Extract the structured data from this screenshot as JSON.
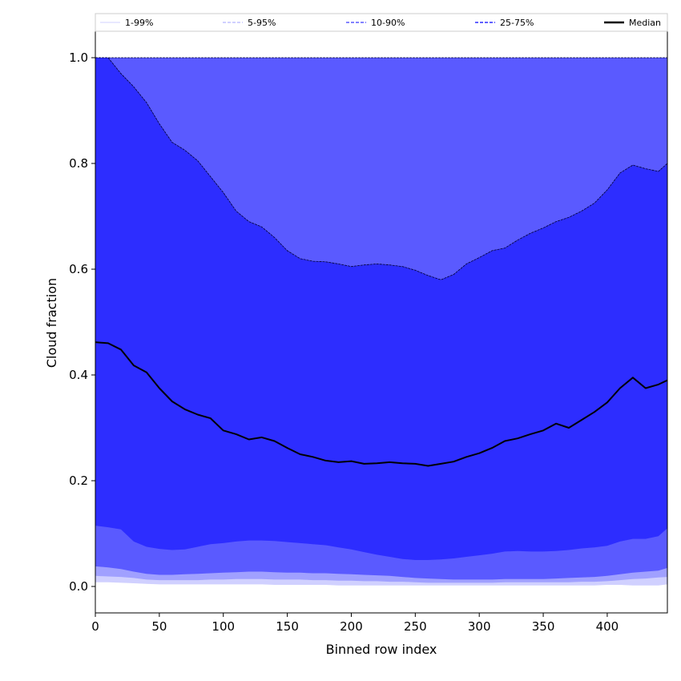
{
  "chart_data": {
    "type": "area",
    "xlabel": "Binned row index",
    "ylabel": "Cloud fraction",
    "xlim": [
      0,
      447
    ],
    "ylim": [
      -0.05,
      1.05
    ],
    "xticks": [
      0,
      50,
      100,
      150,
      200,
      250,
      300,
      350,
      400
    ],
    "yticks": [
      0.0,
      0.2,
      0.4,
      0.6,
      0.8,
      1.0
    ],
    "grid": false,
    "legend_position": "top",
    "colors": {
      "band_1_99": "#d0d0ff",
      "band_5_95": "#a0a0ff",
      "band_10_90": "#5a5aff",
      "band_25_75": "#2d2dff",
      "median": "#000000"
    },
    "x": [
      0,
      10,
      20,
      30,
      40,
      50,
      60,
      70,
      80,
      90,
      100,
      110,
      120,
      130,
      140,
      150,
      160,
      170,
      180,
      190,
      200,
      210,
      220,
      230,
      240,
      250,
      260,
      270,
      280,
      290,
      300,
      310,
      320,
      330,
      340,
      350,
      360,
      370,
      380,
      390,
      400,
      410,
      420,
      430,
      440,
      447
    ],
    "series": [
      {
        "name": "1-99%",
        "lower": [
          0.008,
          0.008,
          0.007,
          0.006,
          0.005,
          0.004,
          0.004,
          0.004,
          0.004,
          0.004,
          0.004,
          0.004,
          0.004,
          0.004,
          0.003,
          0.003,
          0.003,
          0.003,
          0.003,
          0.002,
          0.002,
          0.002,
          0.002,
          0.002,
          0.002,
          0.002,
          0.002,
          0.002,
          0.002,
          0.002,
          0.002,
          0.002,
          0.002,
          0.002,
          0.002,
          0.002,
          0.002,
          0.002,
          0.002,
          0.002,
          0.003,
          0.003,
          0.002,
          0.002,
          0.002,
          0.004
        ],
        "upper": [
          1,
          1,
          1,
          1,
          1,
          1,
          1,
          1,
          1,
          1,
          1,
          1,
          1,
          1,
          1,
          1,
          1,
          1,
          1,
          1,
          1,
          1,
          1,
          1,
          1,
          1,
          1,
          1,
          1,
          1,
          1,
          1,
          1,
          1,
          1,
          1,
          1,
          1,
          1,
          1,
          1,
          1,
          1,
          1,
          1,
          1
        ]
      },
      {
        "name": "5-95%",
        "lower": [
          0.02,
          0.019,
          0.018,
          0.016,
          0.013,
          0.012,
          0.012,
          0.012,
          0.012,
          0.013,
          0.013,
          0.014,
          0.014,
          0.014,
          0.013,
          0.013,
          0.013,
          0.012,
          0.012,
          0.011,
          0.011,
          0.01,
          0.01,
          0.009,
          0.009,
          0.008,
          0.007,
          0.007,
          0.007,
          0.007,
          0.007,
          0.007,
          0.008,
          0.008,
          0.008,
          0.008,
          0.008,
          0.008,
          0.009,
          0.009,
          0.01,
          0.012,
          0.014,
          0.015,
          0.017,
          0.018
        ],
        "upper": [
          1,
          1,
          1,
          1,
          1,
          1,
          1,
          1,
          1,
          1,
          1,
          1,
          1,
          1,
          1,
          1,
          1,
          1,
          1,
          1,
          1,
          1,
          1,
          1,
          1,
          0.99,
          0.985,
          0.975,
          0.99,
          0.995,
          0.99,
          0.995,
          0.99,
          0.995,
          1,
          0.99,
          0.995,
          1,
          1,
          1,
          1,
          1,
          1,
          1,
          1,
          1
        ]
      },
      {
        "name": "10-90%",
        "lower": [
          0.038,
          0.036,
          0.033,
          0.028,
          0.024,
          0.022,
          0.022,
          0.023,
          0.024,
          0.025,
          0.026,
          0.027,
          0.028,
          0.028,
          0.027,
          0.026,
          0.026,
          0.025,
          0.025,
          0.024,
          0.023,
          0.022,
          0.021,
          0.02,
          0.018,
          0.016,
          0.015,
          0.014,
          0.013,
          0.013,
          0.013,
          0.013,
          0.014,
          0.014,
          0.014,
          0.014,
          0.015,
          0.016,
          0.017,
          0.018,
          0.02,
          0.023,
          0.026,
          0.028,
          0.03,
          0.035
        ],
        "upper": [
          1,
          1,
          1,
          1,
          1,
          1,
          1,
          1,
          1,
          1,
          1,
          1,
          1,
          1,
          1,
          1,
          1,
          1,
          1,
          1,
          1,
          1,
          1,
          1,
          1,
          1,
          1,
          1,
          1,
          1,
          1,
          1,
          1,
          1,
          1,
          1,
          1,
          1,
          1,
          1,
          1,
          1,
          1,
          1,
          1,
          1
        ]
      },
      {
        "name": "25-75%",
        "lower": [
          0.115,
          0.112,
          0.108,
          0.085,
          0.075,
          0.071,
          0.069,
          0.07,
          0.075,
          0.08,
          0.082,
          0.085,
          0.087,
          0.087,
          0.086,
          0.084,
          0.082,
          0.08,
          0.078,
          0.074,
          0.07,
          0.065,
          0.06,
          0.056,
          0.052,
          0.05,
          0.05,
          0.051,
          0.053,
          0.056,
          0.059,
          0.062,
          0.066,
          0.067,
          0.066,
          0.066,
          0.067,
          0.069,
          0.072,
          0.074,
          0.077,
          0.085,
          0.09,
          0.09,
          0.095,
          0.11
        ],
        "upper": [
          1.0,
          1.0,
          0.97,
          0.945,
          0.915,
          0.875,
          0.84,
          0.825,
          0.805,
          0.775,
          0.745,
          0.71,
          0.69,
          0.68,
          0.66,
          0.635,
          0.62,
          0.615,
          0.614,
          0.61,
          0.605,
          0.608,
          0.61,
          0.608,
          0.605,
          0.598,
          0.588,
          0.58,
          0.59,
          0.61,
          0.622,
          0.635,
          0.64,
          0.655,
          0.668,
          0.678,
          0.69,
          0.698,
          0.71,
          0.725,
          0.75,
          0.782,
          0.797,
          0.79,
          0.785,
          0.8
        ]
      },
      {
        "name": "Median",
        "values": [
          0.462,
          0.46,
          0.448,
          0.418,
          0.405,
          0.375,
          0.35,
          0.335,
          0.325,
          0.318,
          0.295,
          0.288,
          0.278,
          0.282,
          0.275,
          0.262,
          0.25,
          0.245,
          0.238,
          0.235,
          0.237,
          0.232,
          0.233,
          0.235,
          0.233,
          0.232,
          0.228,
          0.232,
          0.236,
          0.245,
          0.252,
          0.262,
          0.275,
          0.28,
          0.288,
          0.295,
          0.308,
          0.3,
          0.315,
          0.33,
          0.348,
          0.375,
          0.395,
          0.375,
          0.382,
          0.39
        ]
      }
    ]
  },
  "legend": {
    "items": [
      {
        "label": "1-99%",
        "color": "#d0d0ff",
        "dash": "solid",
        "width": 1
      },
      {
        "label": "5-95%",
        "color": "#a0a0ff",
        "dash": "dash",
        "width": 1
      },
      {
        "label": "10-90%",
        "color": "#5a5aff",
        "dash": "dash",
        "width": 1.5
      },
      {
        "label": "25-75%",
        "color": "#2d2dff",
        "dash": "dash",
        "width": 1.5
      },
      {
        "label": "Median",
        "color": "#000000",
        "dash": "solid",
        "width": 2.5
      }
    ]
  }
}
